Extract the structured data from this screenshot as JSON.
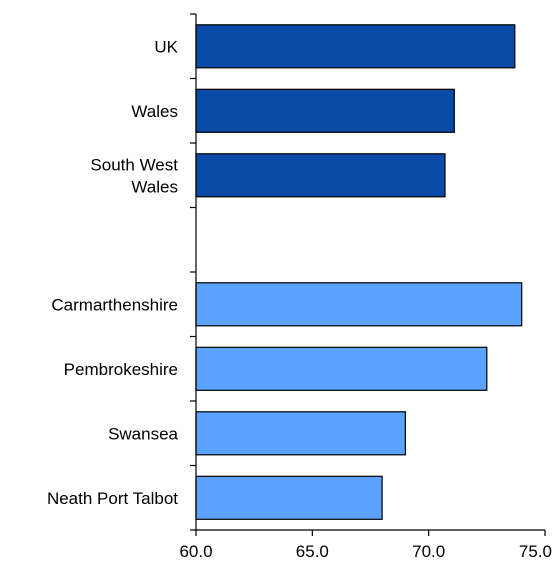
{
  "chart_data": {
    "type": "bar",
    "orientation": "horizontal",
    "title": "",
    "xlabel": "",
    "ylabel": "",
    "xlim": [
      60.0,
      75.0
    ],
    "x_ticks": [
      "60.0",
      "65.0",
      "70.0",
      "75.0"
    ],
    "grid": false,
    "categories": [
      {
        "label_lines": [
          "UK"
        ],
        "value": 73.7,
        "color": "#0a4ba8"
      },
      {
        "label_lines": [
          "Wales"
        ],
        "value": 71.1,
        "color": "#0a4ba8"
      },
      {
        "label_lines": [
          "South West",
          "Wales"
        ],
        "value": 70.7,
        "color": "#0a4ba8"
      },
      {
        "label_lines": [],
        "value": null,
        "color": null
      },
      {
        "label_lines": [
          "Carmarthenshire"
        ],
        "value": 74.0,
        "color": "#5ba3ff"
      },
      {
        "label_lines": [
          "Pembrokeshire"
        ],
        "value": 72.5,
        "color": "#5ba3ff"
      },
      {
        "label_lines": [
          "Swansea"
        ],
        "value": 69.0,
        "color": "#5ba3ff"
      },
      {
        "label_lines": [
          "Neath Port Talbot"
        ],
        "value": 68.0,
        "color": "#5ba3ff"
      }
    ]
  }
}
